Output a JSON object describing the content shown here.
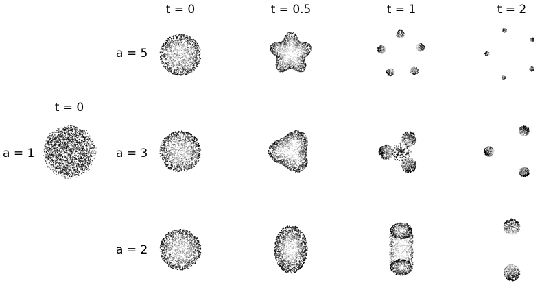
{
  "reference": {
    "row_label": "a = 1",
    "time_label": "t = 0"
  },
  "time_labels": [
    "t = 0",
    "t = 0.5",
    "t = 1",
    "t = 2"
  ],
  "rows": [
    {
      "label": "a = 5",
      "a": 5
    },
    {
      "label": "a = 3",
      "a": 3
    },
    {
      "label": "a = 2",
      "a": 2
    }
  ],
  "colors": {
    "particles": "#000000",
    "background": "#ffffff"
  }
}
